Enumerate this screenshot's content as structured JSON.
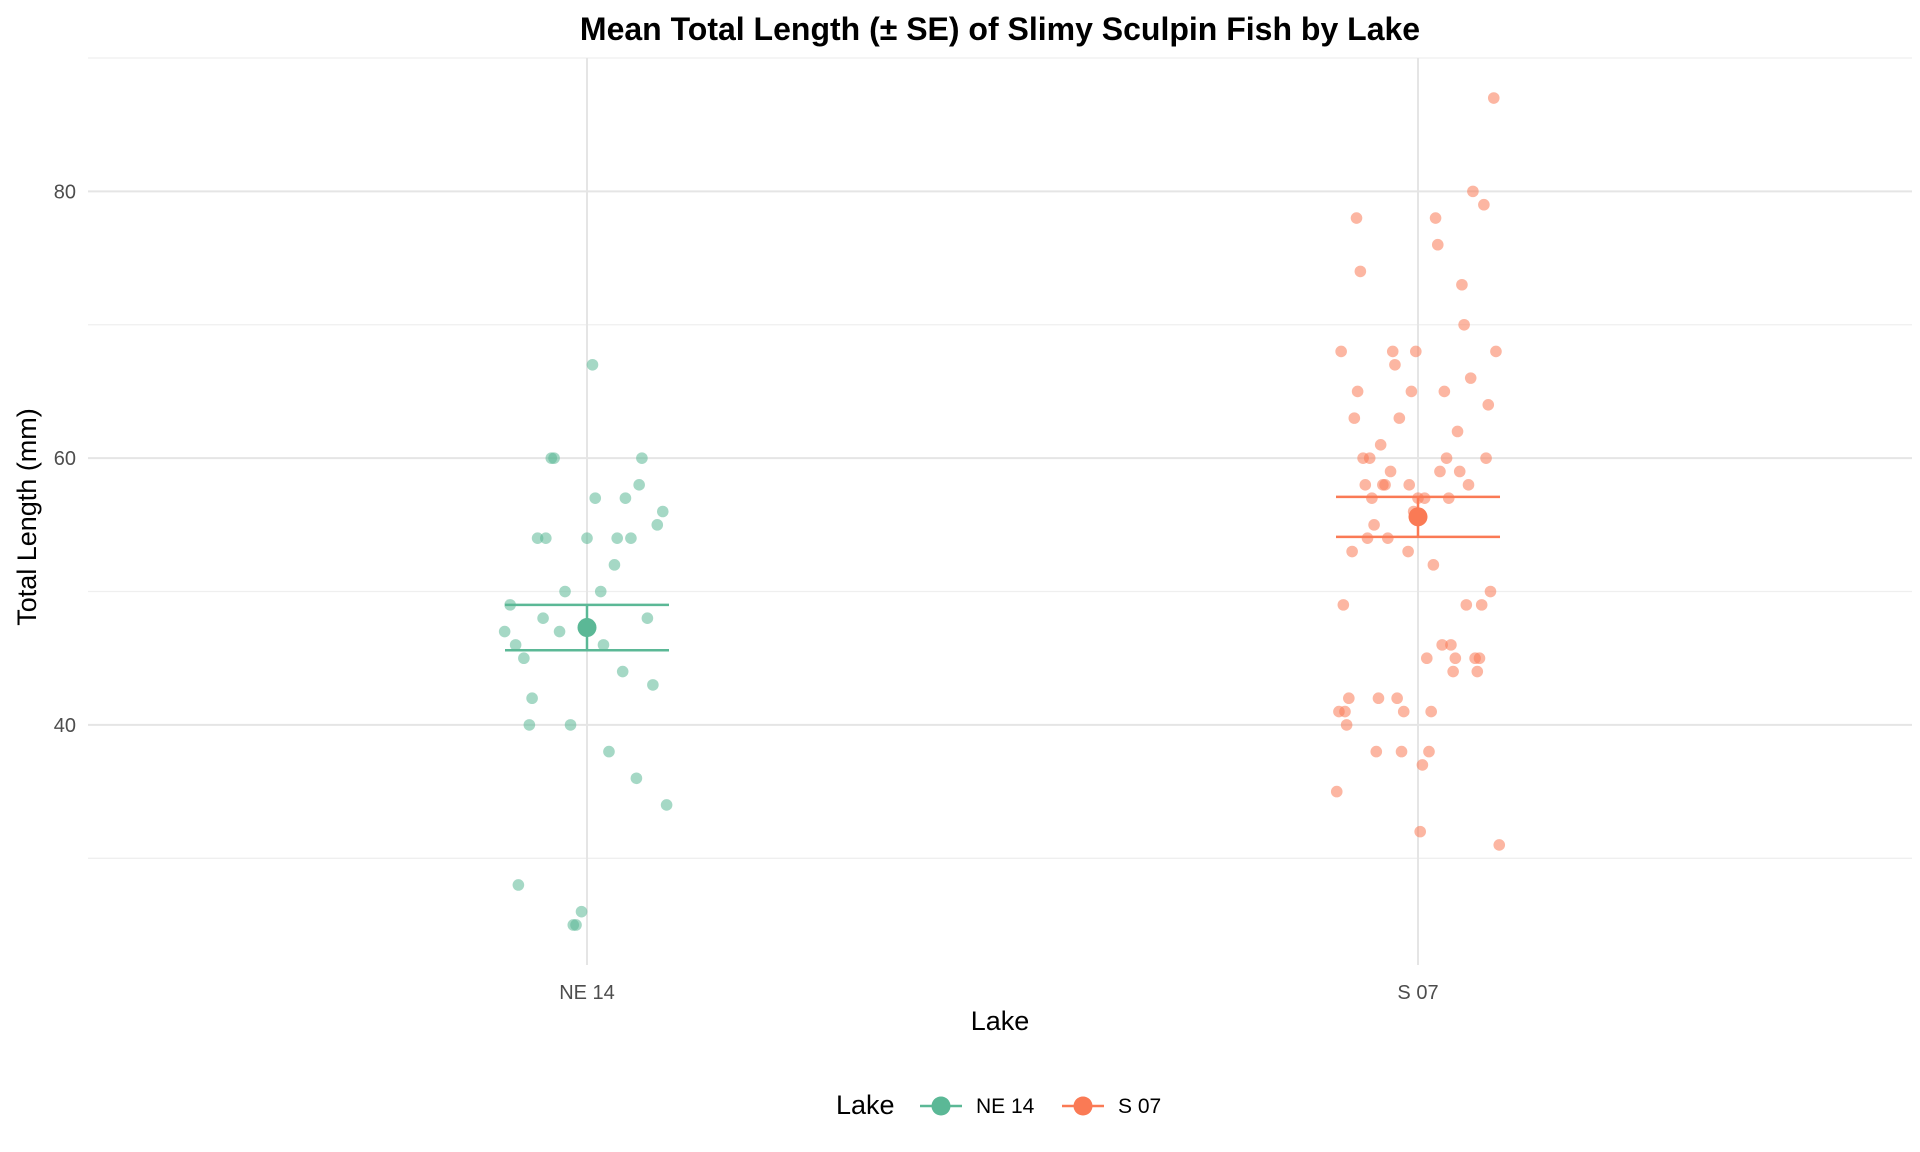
{
  "chart_data": {
    "type": "scatter",
    "title": "Mean Total Length (± SE) of Slimy Sculpin Fish by Lake",
    "xlabel": "Lake",
    "ylabel": "Total Length (mm)",
    "categories": [
      "NE 14",
      "S 07"
    ],
    "ylim": [
      22,
      90
    ],
    "y_ticks": [
      40,
      60,
      80
    ],
    "grid": true,
    "legend": {
      "title": "Lake",
      "position": "bottom"
    },
    "series": [
      {
        "name": "NE 14",
        "color": "#5bb896",
        "mean": 47.3,
        "se_upper": 49.0,
        "se_lower": 45.6,
        "values": [
          [
            -0.15,
            47
          ],
          [
            -0.14,
            49
          ],
          [
            -0.13,
            46
          ],
          [
            -0.125,
            28
          ],
          [
            -0.115,
            45
          ],
          [
            -0.105,
            40
          ],
          [
            -0.1,
            42
          ],
          [
            -0.09,
            54
          ],
          [
            -0.08,
            48
          ],
          [
            -0.075,
            54
          ],
          [
            -0.065,
            60
          ],
          [
            -0.06,
            60
          ],
          [
            -0.05,
            47
          ],
          [
            -0.04,
            50
          ],
          [
            -0.03,
            40
          ],
          [
            -0.025,
            25
          ],
          [
            -0.02,
            25
          ],
          [
            -0.01,
            26
          ],
          [
            0,
            54
          ],
          [
            0.01,
            67
          ],
          [
            0.015,
            57
          ],
          [
            0.025,
            50
          ],
          [
            0.03,
            46
          ],
          [
            0.04,
            38
          ],
          [
            0.05,
            52
          ],
          [
            0.055,
            54
          ],
          [
            0.065,
            44
          ],
          [
            0.07,
            57
          ],
          [
            0.08,
            54
          ],
          [
            0.09,
            36
          ],
          [
            0.095,
            58
          ],
          [
            0.1,
            60
          ],
          [
            0.11,
            48
          ],
          [
            0.12,
            43
          ],
          [
            0.128,
            55
          ],
          [
            0.138,
            56
          ],
          [
            0.145,
            34
          ]
        ]
      },
      {
        "name": "S 07",
        "color": "#fa7a55",
        "mean": 55.6,
        "se_upper": 57.1,
        "se_lower": 54.1,
        "values": [
          [
            -0.148,
            35
          ],
          [
            -0.144,
            41
          ],
          [
            -0.14,
            68
          ],
          [
            -0.136,
            49
          ],
          [
            -0.133,
            41
          ],
          [
            -0.13,
            40
          ],
          [
            -0.126,
            42
          ],
          [
            -0.12,
            53
          ],
          [
            -0.116,
            63
          ],
          [
            -0.11,
            65
          ],
          [
            -0.112,
            78
          ],
          [
            -0.105,
            74
          ],
          [
            -0.1,
            60
          ],
          [
            -0.096,
            58
          ],
          [
            -0.092,
            54
          ],
          [
            -0.088,
            60
          ],
          [
            -0.084,
            57
          ],
          [
            -0.08,
            55
          ],
          [
            -0.076,
            38
          ],
          [
            -0.072,
            42
          ],
          [
            -0.068,
            61
          ],
          [
            -0.064,
            58
          ],
          [
            -0.06,
            58
          ],
          [
            -0.055,
            54
          ],
          [
            -0.05,
            59
          ],
          [
            -0.046,
            68
          ],
          [
            -0.042,
            67
          ],
          [
            -0.038,
            42
          ],
          [
            -0.034,
            63
          ],
          [
            -0.03,
            38
          ],
          [
            -0.026,
            41
          ],
          [
            -0.018,
            53
          ],
          [
            -0.016,
            58
          ],
          [
            -0.012,
            65
          ],
          [
            -0.008,
            56
          ],
          [
            -0.004,
            68
          ],
          [
            0,
            57
          ],
          [
            0.004,
            32
          ],
          [
            0.008,
            37
          ],
          [
            0.012,
            57
          ],
          [
            0.016,
            45
          ],
          [
            0.02,
            38
          ],
          [
            0.024,
            41
          ],
          [
            0.028,
            52
          ],
          [
            0.032,
            78
          ],
          [
            0.036,
            76
          ],
          [
            0.04,
            59
          ],
          [
            0.044,
            46
          ],
          [
            0.048,
            65
          ],
          [
            0.052,
            60
          ],
          [
            0.056,
            57
          ],
          [
            0.06,
            46
          ],
          [
            0.064,
            44
          ],
          [
            0.068,
            45
          ],
          [
            0.072,
            62
          ],
          [
            0.076,
            59
          ],
          [
            0.08,
            73
          ],
          [
            0.084,
            70
          ],
          [
            0.088,
            49
          ],
          [
            0.092,
            58
          ],
          [
            0.096,
            66
          ],
          [
            0.1,
            80
          ],
          [
            0.104,
            45
          ],
          [
            0.108,
            44
          ],
          [
            0.112,
            45
          ],
          [
            0.116,
            49
          ],
          [
            0.12,
            79
          ],
          [
            0.124,
            60
          ],
          [
            0.128,
            64
          ],
          [
            0.132,
            50
          ],
          [
            0.138,
            87
          ],
          [
            0.142,
            68
          ],
          [
            0.148,
            31
          ]
        ]
      }
    ]
  }
}
